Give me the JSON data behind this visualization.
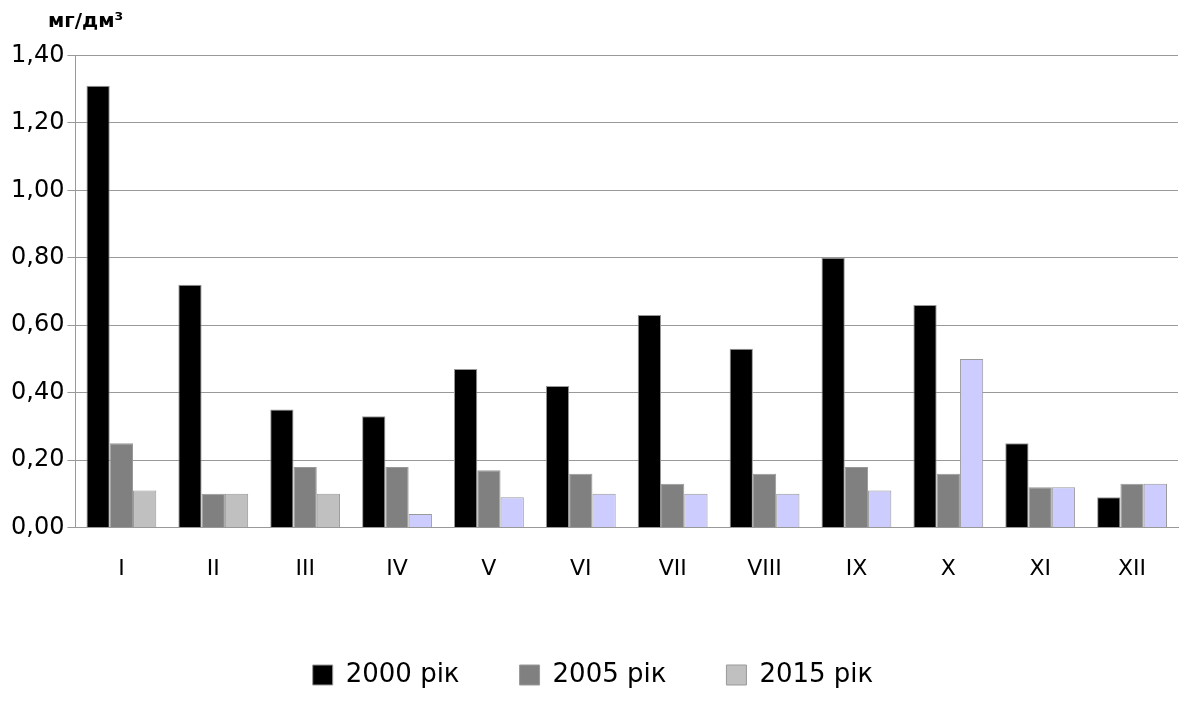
{
  "chart_data": {
    "type": "bar",
    "ylabel": "мг/дм³",
    "categories": [
      "I",
      "II",
      "III",
      "IV",
      "V",
      "VI",
      "VII",
      "VIII",
      "IX",
      "X",
      "XI",
      "XII"
    ],
    "series": [
      {
        "name": "2000 рік",
        "color": "#000000",
        "values": [
          1.31,
          0.72,
          0.35,
          0.33,
          0.47,
          0.42,
          0.63,
          0.53,
          0.8,
          0.66,
          0.25,
          0.09
        ]
      },
      {
        "name": "2005 рік",
        "color": "#808080",
        "values": [
          0.25,
          0.1,
          0.18,
          0.18,
          0.17,
          0.16,
          0.13,
          0.16,
          0.18,
          0.16,
          0.12,
          0.13
        ]
      },
      {
        "name": "2015 рік",
        "color": "#c0c0c0",
        "colors": [
          "#c0c0c0",
          "#c0c0c0",
          "#c0c0c0",
          "#ccccff",
          "#ccccff",
          "#ccccff",
          "#ccccff",
          "#ccccff",
          "#ccccff",
          "#ccccff",
          "#ccccff",
          "#ccccff"
        ],
        "values": [
          0.11,
          0.1,
          0.1,
          0.04,
          0.09,
          0.1,
          0.1,
          0.1,
          0.11,
          0.5,
          0.12,
          0.13
        ]
      }
    ],
    "ylim": [
      0,
      1.4
    ],
    "yticks": [
      {
        "value": 0,
        "label": "0,00"
      },
      {
        "value": 0.2,
        "label": "0,20"
      },
      {
        "value": 0.4,
        "label": "0,40"
      },
      {
        "value": 0.6,
        "label": "0,60"
      },
      {
        "value": 0.8,
        "label": "0,80"
      },
      {
        "value": 1.0,
        "label": "1,00"
      },
      {
        "value": 1.2,
        "label": "1,20"
      },
      {
        "value": 1.4,
        "label": "1,40"
      }
    ],
    "grid": "y",
    "legend": "bottom"
  }
}
